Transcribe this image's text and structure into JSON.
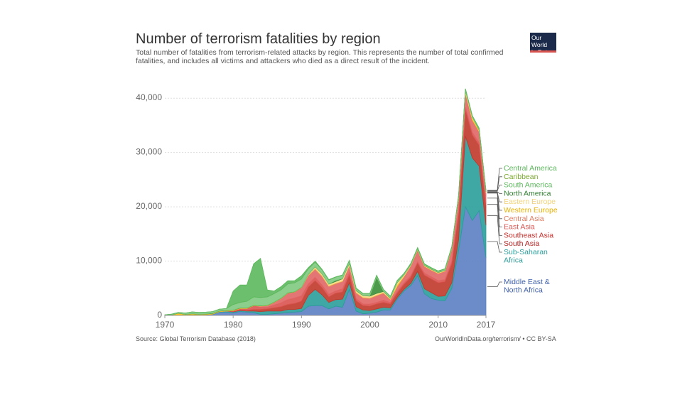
{
  "header": {
    "title": "Number of terrorism fatalities by region",
    "subtitle": "Total number of fatalities from terrorism-related attacks by region. This represents the number of total confirmed fatalities, and includes all victims and attackers who died as a direct result of the incident.",
    "logo_line1": "Our World",
    "logo_line2": "in Data"
  },
  "footer": {
    "source": "Source: Global Terrorism Database (2018)",
    "url": "OurWorldInData.org/terrorism/ • CC BY-SA"
  },
  "chart_data": {
    "type": "area",
    "stacked": true,
    "xlim": [
      1970,
      2017
    ],
    "ylim": [
      0,
      45000
    ],
    "x_ticks": [
      "1970",
      "1980",
      "1990",
      "2000",
      "2010",
      "2017"
    ],
    "y_ticks": [
      "0",
      "10,000",
      "20,000",
      "30,000",
      "40,000"
    ],
    "grid": "horizontal dotted",
    "x": [
      1970,
      1971,
      1972,
      1973,
      1974,
      1975,
      1976,
      1977,
      1978,
      1979,
      1980,
      1981,
      1982,
      1983,
      1984,
      1985,
      1986,
      1987,
      1988,
      1989,
      1990,
      1991,
      1992,
      1993,
      1994,
      1995,
      1996,
      1997,
      1998,
      1999,
      2000,
      2001,
      2002,
      2003,
      2004,
      2005,
      2006,
      2007,
      2008,
      2009,
      2010,
      2011,
      2012,
      2013,
      2014,
      2015,
      2016,
      2017
    ],
    "series": [
      {
        "name": "Middle East & North Africa",
        "color": "#5b7ec3",
        "values": [
          20,
          30,
          100,
          80,
          100,
          100,
          150,
          200,
          600,
          600,
          500,
          700,
          600,
          500,
          200,
          200,
          300,
          400,
          500,
          600,
          700,
          1700,
          1800,
          1800,
          1200,
          1700,
          1500,
          4800,
          800,
          300,
          400,
          600,
          1000,
          1000,
          3000,
          4500,
          5500,
          7300,
          4000,
          3100,
          2800,
          2700,
          5000,
          12000,
          20000,
          17500,
          19300,
          10600
        ]
      },
      {
        "name": "Sub-Saharan Africa",
        "color": "#2a9d9a",
        "values": [
          0,
          0,
          0,
          0,
          0,
          0,
          0,
          50,
          100,
          200,
          150,
          200,
          200,
          300,
          500,
          600,
          500,
          400,
          600,
          500,
          600,
          2000,
          3000,
          2000,
          1200,
          1200,
          1500,
          1200,
          800,
          700,
          500,
          600,
          500,
          400,
          300,
          300,
          400,
          800,
          900,
          1100,
          700,
          900,
          1000,
          2000,
          13000,
          11500,
          8200,
          6000
        ]
      },
      {
        "name": "South Asia",
        "color": "#c0392b",
        "values": [
          0,
          0,
          0,
          0,
          0,
          0,
          0,
          0,
          0,
          0,
          50,
          100,
          100,
          300,
          400,
          400,
          600,
          800,
          900,
          1100,
          1300,
          1500,
          1600,
          1300,
          1000,
          1200,
          1300,
          1400,
          1100,
          800,
          800,
          900,
          900,
          700,
          800,
          900,
          1100,
          1500,
          2500,
          2500,
          2500,
          2600,
          3500,
          4800,
          4800,
          4200,
          3800,
          3600
        ]
      },
      {
        "name": "Southeast Asia",
        "color": "#d9534f",
        "values": [
          0,
          0,
          0,
          0,
          0,
          0,
          0,
          0,
          0,
          0,
          100,
          200,
          300,
          600,
          400,
          300,
          500,
          700,
          900,
          1000,
          1000,
          600,
          600,
          500,
          500,
          400,
          600,
          500,
          400,
          300,
          400,
          300,
          400,
          300,
          300,
          300,
          300,
          300,
          400,
          400,
          400,
          400,
          500,
          500,
          600,
          500,
          500,
          500
        ]
      },
      {
        "name": "East Asia",
        "color": "#e06666",
        "values": [
          0,
          0,
          0,
          0,
          0,
          0,
          0,
          0,
          0,
          0,
          50,
          50,
          50,
          100,
          200,
          300,
          500,
          800,
          1200,
          1100,
          1500,
          1500,
          1400,
          1500,
          1400,
          1300,
          1300,
          1200,
          1000,
          1100,
          1000,
          1200,
          1300,
          500,
          900,
          1100,
          1800,
          2100,
          1200,
          1200,
          1300,
          1500,
          2200,
          2300,
          2500,
          2200,
          2000,
          1800
        ]
      },
      {
        "name": "Central Asia",
        "color": "#e8896b",
        "values": [
          0,
          0,
          0,
          0,
          0,
          0,
          0,
          0,
          0,
          0,
          0,
          0,
          0,
          0,
          0,
          0,
          0,
          0,
          0,
          0,
          0,
          100,
          200,
          200,
          100,
          100,
          100,
          100,
          100,
          100,
          100,
          100,
          50,
          50,
          50,
          50,
          50,
          50,
          50,
          50,
          50,
          50,
          50,
          50,
          100,
          100,
          50,
          50
        ]
      },
      {
        "name": "Western Europe",
        "color": "#f5c518",
        "values": [
          50,
          50,
          300,
          100,
          200,
          100,
          100,
          100,
          100,
          100,
          100,
          100,
          100,
          50,
          50,
          50,
          50,
          50,
          50,
          50,
          50,
          50,
          50,
          50,
          50,
          50,
          50,
          50,
          50,
          50,
          50,
          50,
          50,
          100,
          300,
          100,
          50,
          50,
          50,
          50,
          50,
          50,
          50,
          50,
          50,
          300,
          200,
          100
        ]
      },
      {
        "name": "Eastern Europe",
        "color": "#f6d98a",
        "values": [
          0,
          0,
          0,
          0,
          0,
          0,
          0,
          0,
          0,
          0,
          0,
          0,
          0,
          0,
          0,
          0,
          0,
          0,
          0,
          0,
          0,
          100,
          300,
          300,
          300,
          300,
          400,
          300,
          300,
          300,
          300,
          300,
          200,
          100,
          400,
          200,
          100,
          100,
          100,
          100,
          100,
          100,
          100,
          200,
          400,
          200,
          100,
          100
        ]
      },
      {
        "name": "North America",
        "color": "#3a8f3a",
        "values": [
          50,
          50,
          50,
          50,
          50,
          50,
          50,
          50,
          50,
          50,
          50,
          50,
          50,
          50,
          50,
          50,
          50,
          50,
          50,
          50,
          50,
          50,
          50,
          50,
          50,
          200,
          50,
          50,
          50,
          50,
          50,
          3000,
          50,
          50,
          50,
          50,
          50,
          50,
          50,
          50,
          50,
          50,
          50,
          50,
          50,
          50,
          100,
          50
        ]
      },
      {
        "name": "South America",
        "color": "#7fc97f",
        "values": [
          0,
          100,
          100,
          200,
          300,
          300,
          300,
          300,
          300,
          300,
          1000,
          1000,
          1200,
          1500,
          1500,
          1500,
          1500,
          1500,
          1600,
          1600,
          1500,
          1000,
          800,
          700,
          700,
          600,
          600,
          500,
          400,
          300,
          400,
          300,
          300,
          300,
          300,
          200,
          200,
          200,
          200,
          200,
          200,
          200,
          200,
          200,
          200,
          200,
          200,
          200
        ]
      },
      {
        "name": "Caribbean",
        "color": "#8cc98c",
        "values": [
          0,
          0,
          0,
          0,
          0,
          0,
          0,
          0,
          0,
          0,
          0,
          0,
          0,
          0,
          0,
          0,
          0,
          0,
          0,
          0,
          0,
          0,
          0,
          0,
          0,
          0,
          0,
          0,
          0,
          0,
          0,
          0,
          0,
          0,
          0,
          0,
          0,
          0,
          0,
          0,
          0,
          0,
          0,
          0,
          0,
          0,
          0,
          0
        ]
      },
      {
        "name": "Central America",
        "color": "#5cb85c",
        "values": [
          0,
          0,
          0,
          0,
          0,
          0,
          0,
          0,
          0,
          0,
          2500,
          3200,
          3000,
          6100,
          7200,
          1300,
          500,
          600,
          600,
          400,
          600,
          200,
          200,
          100,
          100,
          50,
          50,
          50,
          50,
          50,
          50,
          50,
          50,
          50,
          50,
          50,
          50,
          50,
          50,
          50,
          50,
          50,
          50,
          50,
          50,
          50,
          50,
          50
        ]
      }
    ],
    "legend_placement": "right"
  }
}
